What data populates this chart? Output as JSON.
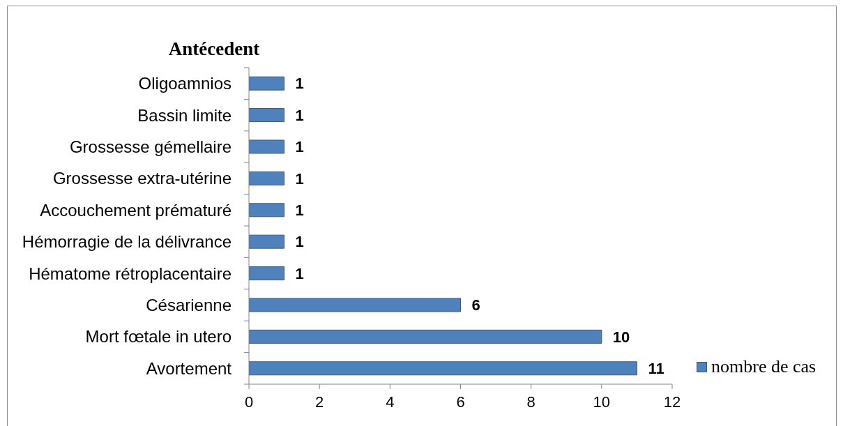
{
  "chart_data": {
    "type": "bar",
    "orientation": "horizontal",
    "ylabel": "Antécedent",
    "categories": [
      "Oligoamnios",
      "Bassin limite",
      "Grossesse gémellaire",
      "Grossesse extra-utérine",
      "Accouchement prématuré",
      "Hémorragie de la délivrance",
      "Hématome rétroplacentaire",
      "Césarienne",
      "Mort fœtale in utero",
      "Avortement"
    ],
    "series": [
      {
        "name": "nombre de cas",
        "color": "#4f81bd",
        "values": [
          1,
          1,
          1,
          1,
          1,
          1,
          1,
          6,
          10,
          11
        ]
      }
    ],
    "xlim": [
      0,
      12
    ],
    "xticks": [
      0,
      2,
      4,
      6,
      8,
      10,
      12
    ],
    "data_labels": true,
    "legend": "bottom right"
  }
}
